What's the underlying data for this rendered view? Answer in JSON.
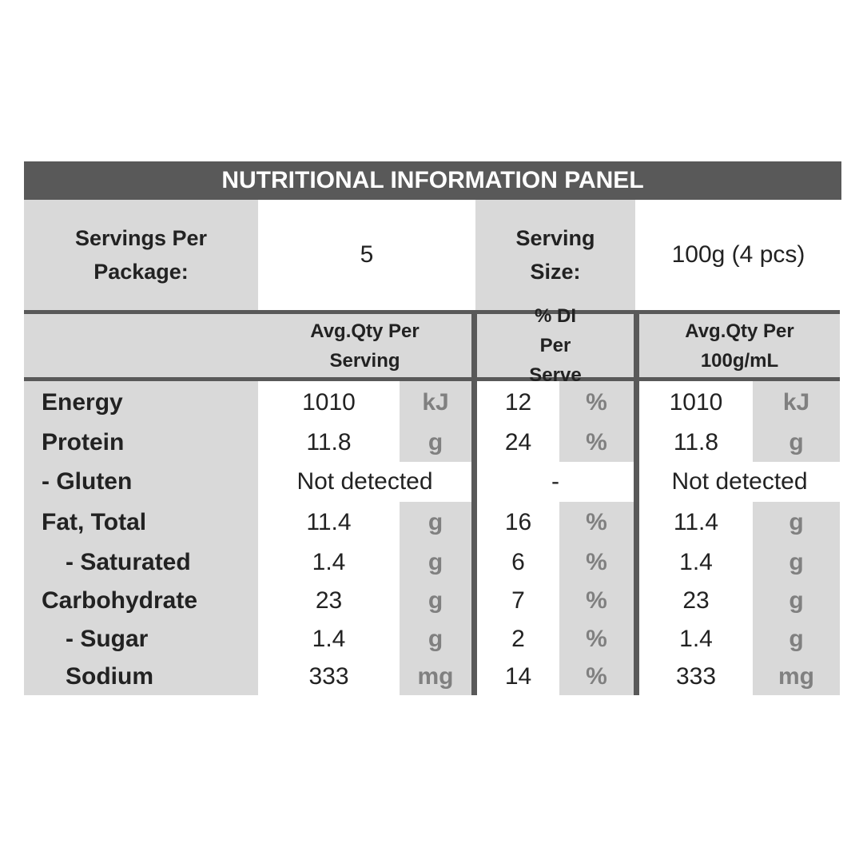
{
  "title": "NUTRITIONAL INFORMATION PANEL",
  "servings_per_package": {
    "label": "Servings Per Package:",
    "value": 5
  },
  "serving_size": {
    "label": "Serving Size:",
    "value": "100g (4 pcs)"
  },
  "columns": [
    "Avg.Qty Per Serving",
    "% DI Per Serve",
    "Avg.Qty Per 100g/mL"
  ],
  "rows": [
    {
      "name": "Energy",
      "per_serving": 1010,
      "per_serving_unit": "kJ",
      "di": 12,
      "di_unit": "%",
      "per_100g": 1010,
      "per_100g_unit": "kJ"
    },
    {
      "name": "Protein",
      "per_serving": 11.8,
      "per_serving_unit": "g",
      "di": 24,
      "di_unit": "%",
      "per_100g": 11.8,
      "per_100g_unit": "g"
    },
    {
      "name": "- Gluten",
      "per_serving": "Not detected",
      "di": "-",
      "per_100g": "Not detected"
    },
    {
      "name": "Fat, Total",
      "per_serving": 11.4,
      "per_serving_unit": "g",
      "di": 16,
      "di_unit": "%",
      "per_100g": 11.4,
      "per_100g_unit": "g"
    },
    {
      "name": "- Saturated",
      "indent": true,
      "per_serving": 1.4,
      "per_serving_unit": "g",
      "di": 6,
      "di_unit": "%",
      "per_100g": 1.4,
      "per_100g_unit": "g"
    },
    {
      "name": "Carbohydrate",
      "per_serving": 23,
      "per_serving_unit": "g",
      "di": 7,
      "di_unit": "%",
      "per_100g": 23,
      "per_100g_unit": "g"
    },
    {
      "name": "- Sugar",
      "indent": true,
      "per_serving": 1.4,
      "per_serving_unit": "g",
      "di": 2,
      "di_unit": "%",
      "per_100g": 1.4,
      "per_100g_unit": "g"
    },
    {
      "name": "Sodium",
      "indent": true,
      "per_serving": 333,
      "per_serving_unit": "mg",
      "di": 14,
      "di_unit": "%",
      "per_100g": 333,
      "per_100g_unit": "mg"
    }
  ]
}
